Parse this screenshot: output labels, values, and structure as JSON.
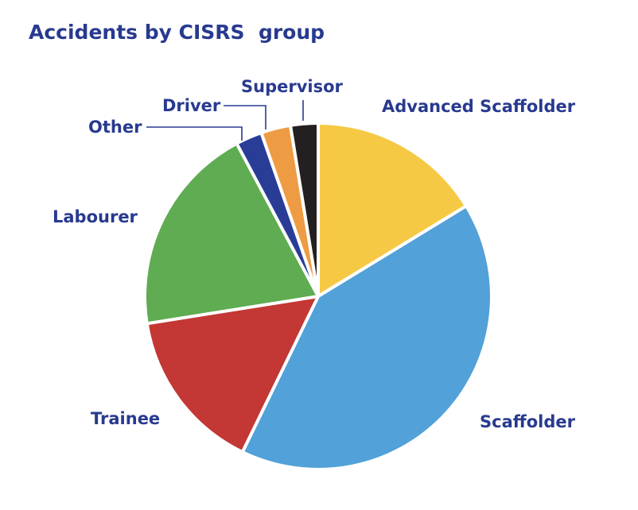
{
  "chart_data": {
    "type": "pie",
    "title": "Accidents by CISRS  group",
    "start_angle_deg": 0,
    "direction": "clockwise",
    "slices": [
      {
        "label": "Advanced Scaffolder",
        "value": 16.5,
        "color": "#f6c945"
      },
      {
        "label": "Scaffolder",
        "value": 41.5,
        "color": "#52a1d8"
      },
      {
        "label": "Trainee",
        "value": 15.5,
        "color": "#c33734"
      },
      {
        "label": "Labourer",
        "value": 20.0,
        "color": "#5fac52"
      },
      {
        "label": "Other",
        "value": 2.5,
        "color": "#2a3d96"
      },
      {
        "label": "Driver",
        "value": 2.8,
        "color": "#ee9c44"
      },
      {
        "label": "Supervisor",
        "value": 2.6,
        "color": "#241f20"
      }
    ]
  }
}
